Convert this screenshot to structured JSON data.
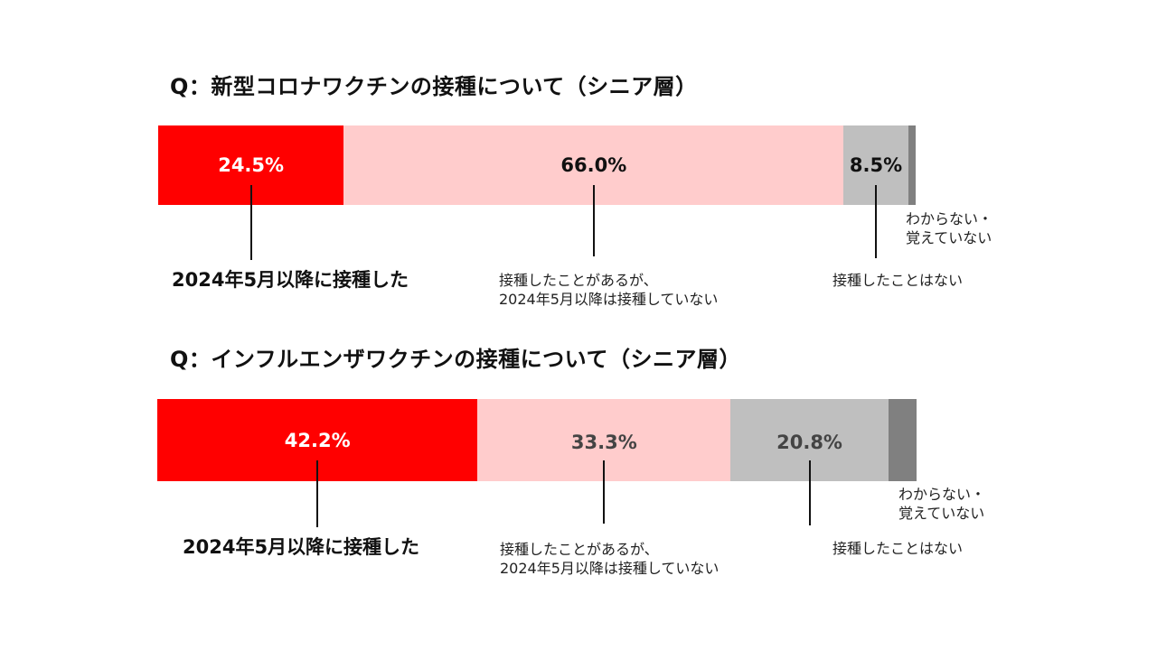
{
  "chart_data": [
    {
      "type": "bar",
      "title": "Q：新型コロナワクチンの接種について（シニア層）",
      "segments": [
        {
          "category": "2024年5月以降に接種した",
          "value": 24.5,
          "label": "24.5%",
          "color": "#ff0000",
          "text_color": "#ffffff"
        },
        {
          "category": "接種したことがあるが、\n2024年5月以降は接種していない",
          "value": 66.0,
          "label": "66.0%",
          "color": "#ffcccc",
          "text_color": "#111111"
        },
        {
          "category": "接種したことはない",
          "value": 8.5,
          "label": "8.5%",
          "color": "#bfbfbf",
          "text_color": "#111111"
        },
        {
          "category": "わからない・\n覚えていない",
          "value": 1.0,
          "label": "",
          "color": "#808080",
          "text_color": "#111111"
        }
      ]
    },
    {
      "type": "bar",
      "title": "Q：インフルエンザワクチンの接種について（シニア層）",
      "segments": [
        {
          "category": "2024年5月以降に接種した",
          "value": 42.2,
          "label": "42.2%",
          "color": "#ff0000",
          "text_color": "#ffffff"
        },
        {
          "category": "接種したことがあるが、\n2024年5月以降は接種していない",
          "value": 33.3,
          "label": "33.3%",
          "color": "#ffcccc",
          "text_color": "#444444"
        },
        {
          "category": "接種したことはない",
          "value": 20.8,
          "label": "20.8%",
          "color": "#bfbfbf",
          "text_color": "#444444"
        },
        {
          "category": "わからない・\n覚えていない",
          "value": 3.7,
          "label": "",
          "color": "#808080",
          "text_color": "#111111"
        }
      ]
    }
  ]
}
